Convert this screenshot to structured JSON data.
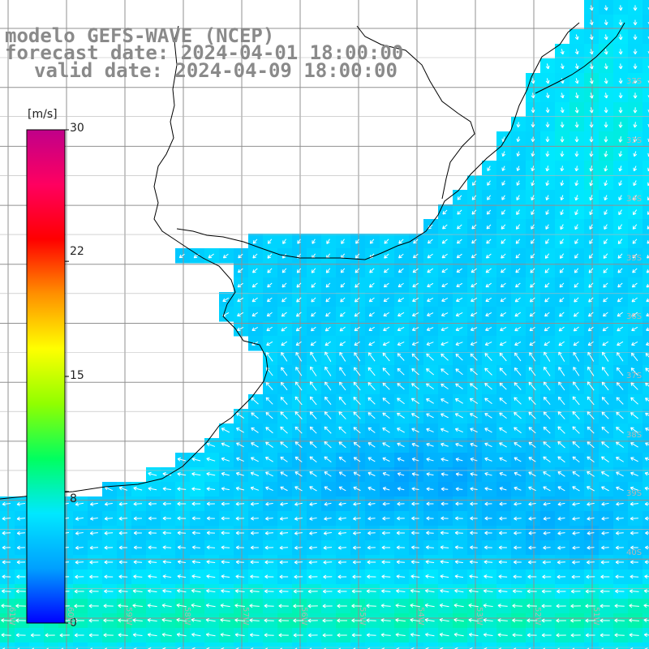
{
  "title": {
    "line1": "modelo GEFS-WAVE (NCEP)",
    "line2": "forecast date: 2024-04-01 18:00:00",
    "line3": "valid date: 2024-04-09 18:00:00"
  },
  "colorbar": {
    "unit": "[m/s]",
    "ticks": [
      {
        "value": 30,
        "label": "30"
      },
      {
        "value": 22,
        "label": "22"
      },
      {
        "value": 15,
        "label": "15"
      },
      {
        "value": 8,
        "label": "8"
      },
      {
        "value": 0,
        "label": "0"
      }
    ],
    "min": 0,
    "max": 30,
    "colors": [
      "#0000ff",
      "#00a0ff",
      "#00e8ff",
      "#00ff60",
      "#90ff00",
      "#ffff00",
      "#ff9000",
      "#ff0000",
      "#ff0060",
      "#c0008a"
    ]
  },
  "map": {
    "field": "wind speed",
    "palette": {
      "land": "#ffffff",
      "grid": "#909090",
      "coast": "#000000",
      "arrow": "#ffffff"
    },
    "lat_labels": [
      "32S",
      "33S",
      "34S",
      "35S",
      "36S",
      "37S",
      "38S",
      "39S",
      "40S"
    ],
    "lon_labels": [
      "61W",
      "60W",
      "59W",
      "58W",
      "57W",
      "56W",
      "55W",
      "54W",
      "53W",
      "52W",
      "51W"
    ]
  }
}
